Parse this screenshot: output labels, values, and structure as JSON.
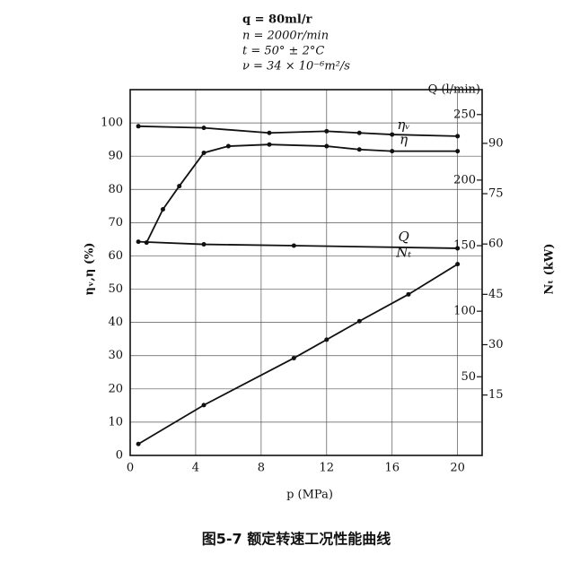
{
  "chart_data": {
    "type": "line",
    "params": [
      "q = 80ml/r",
      "n = 2000r/min",
      "t = 50° ± 2°C",
      "ν = 34 × 10⁻⁶m²/s"
    ],
    "x_label": "p (MPa)",
    "y_label": "ηᵥ,η (%)",
    "y2_label": "Q (l/min)",
    "y3_label": "Nₜ (kW)",
    "caption": "图5-7  额定转速工况性能曲线",
    "xlim": [
      0,
      21.5
    ],
    "xticks": [
      0,
      4,
      8,
      12,
      16,
      20
    ],
    "ylim": [
      0,
      110
    ],
    "yticks": [
      0,
      10,
      20,
      30,
      40,
      50,
      60,
      70,
      80,
      90,
      100
    ],
    "y2lim": [
      -10,
      269
    ],
    "y2ticks": [
      50,
      100,
      150,
      200,
      250
    ],
    "y3lim": [
      -3,
      106
    ],
    "y3ticks": [
      15,
      30,
      45,
      60,
      75,
      90
    ],
    "grid": true,
    "series": [
      {
        "name": "ηᵥ",
        "color": "#111111",
        "axis": "y",
        "x": [
          0.5,
          4.5,
          8.5,
          12,
          14,
          16,
          20
        ],
        "values": [
          99,
          98.5,
          97,
          97.5,
          97,
          96.5,
          96
        ]
      },
      {
        "name": "η",
        "color": "#111111",
        "axis": "y",
        "x": [
          1,
          2,
          3,
          4.5,
          6,
          8.5,
          12,
          14,
          16,
          20
        ],
        "values": [
          64,
          74,
          81,
          91,
          93,
          93.5,
          93,
          92,
          91.5,
          91.5
        ]
      },
      {
        "name": "Q",
        "color": "#111111",
        "axis": "y2",
        "x": [
          0.5,
          4.5,
          10,
          20
        ],
        "values": [
          153,
          151,
          150,
          148
        ]
      },
      {
        "name": "Nₜ",
        "color": "#111111",
        "axis": "y3",
        "x": [
          0.5,
          4.5,
          10,
          12,
          14,
          17,
          20
        ],
        "values": [
          0.4,
          12,
          26,
          31.5,
          37,
          45,
          54
        ]
      }
    ]
  }
}
